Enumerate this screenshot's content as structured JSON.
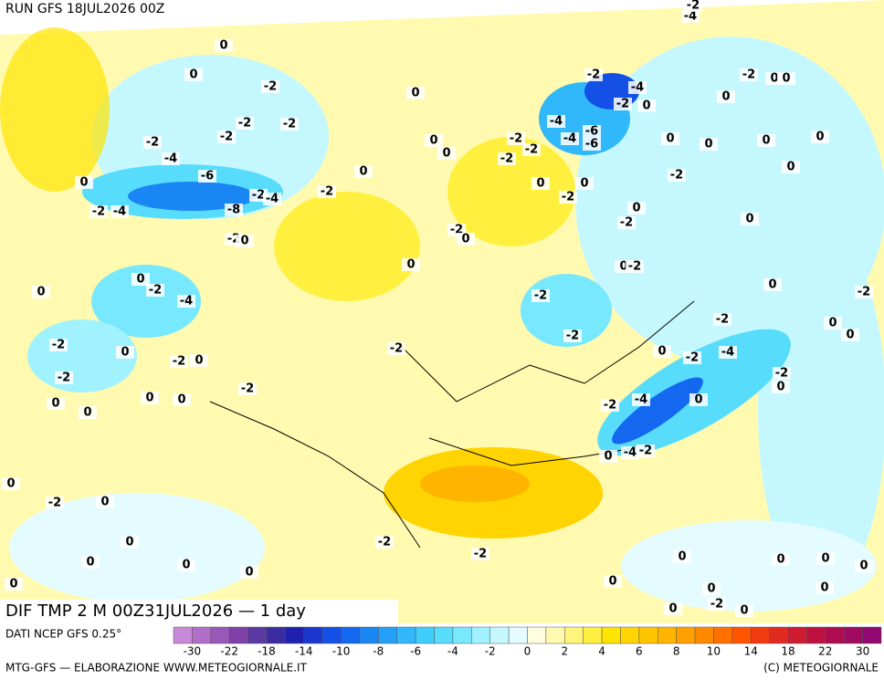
{
  "header": "RUN GFS 18JUL2026 00Z",
  "title": "DIF TMP 2 M 00Z31JUL2026 — 1 day",
  "source": "DATI NCEP GFS 0.25°",
  "footer_left": "MTG-GFS — ELABORAZIONE WWW.METEOGIORNALE.IT",
  "footer_right": "(C) METEOGIORNALE",
  "scale": {
    "labels": [
      -30,
      -22,
      -18,
      -14,
      -10,
      -8,
      -6,
      -4,
      -2,
      0,
      2,
      4,
      6,
      8,
      10,
      14,
      18,
      22,
      30
    ],
    "colors": [
      "#c88ad8",
      "#b06ec8",
      "#9a58b8",
      "#8040a8",
      "#5a3aa0",
      "#3c2ca0",
      "#2020b0",
      "#1a38d0",
      "#1450e6",
      "#1468f0",
      "#1a86f4",
      "#24a0f8",
      "#30b8fa",
      "#40cefc",
      "#58dcfc",
      "#78e8fe",
      "#a0f2fe",
      "#c4f8fe",
      "#e4fcff",
      "#fffde0",
      "#fffab0",
      "#fff57a",
      "#fff040",
      "#ffe400",
      "#ffd400",
      "#ffc400",
      "#ffb400",
      "#ffa000",
      "#ff8a00",
      "#ff7000",
      "#ff5400",
      "#f03c10",
      "#e02a20",
      "#d01a30",
      "#c01040",
      "#b00c50",
      "#a00a60",
      "#900870"
    ]
  },
  "contour_labels": [
    0,
    0,
    -2,
    0,
    -2,
    -2,
    -2,
    -2,
    -4,
    -6,
    0,
    0,
    -2,
    -2,
    -4,
    -8,
    -2,
    -4,
    -2,
    0,
    -2,
    0,
    0,
    0,
    -2,
    -4,
    0,
    -2,
    0,
    -2,
    0,
    -2,
    -2,
    -2,
    0,
    0,
    0,
    0,
    0,
    -2,
    0,
    0,
    0,
    0,
    0,
    0,
    -2,
    -2,
    -2,
    -2,
    -2,
    -4,
    0,
    -4,
    -2,
    0,
    -2,
    -4,
    -2,
    -2,
    0,
    0,
    0,
    0,
    -2,
    0,
    0,
    -2,
    -2,
    0,
    -2,
    0,
    0,
    0,
    0,
    0,
    0,
    -2,
    0,
    0,
    -4,
    -4,
    -6,
    -6,
    -2,
    -4,
    -2,
    0,
    -2,
    -2,
    -2,
    0,
    0,
    -4,
    -2,
    -2,
    0,
    0,
    0,
    0,
    0,
    0,
    -2,
    0,
    0,
    0,
    0,
    0,
    0
  ]
}
